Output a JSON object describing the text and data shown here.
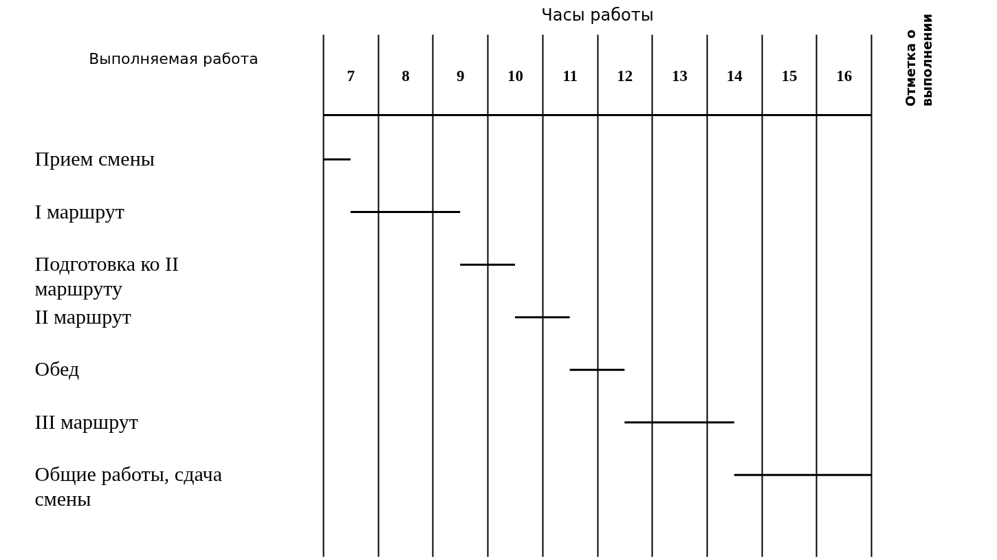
{
  "chart_data": {
    "type": "bar",
    "orientation": "horizontal",
    "xlabel": "Часы работы",
    "ylabel": "Выполняемая работа",
    "y2label": "Отметка о выполнении",
    "categories": [
      "Прием смены",
      "I маршрут",
      "Подготовка ко II маршруту",
      "II маршрут",
      "Обед",
      "III маршрут",
      "Общие работы, сдача смены"
    ],
    "base": [
      7,
      7.5,
      9.5,
      10.5,
      11.5,
      12.5,
      14.5
    ],
    "values": [
      0.5,
      2,
      1,
      1,
      1,
      2,
      2.5
    ],
    "color": "#000000",
    "xlim": [
      7,
      17
    ],
    "xticks": [
      {
        "value": 7,
        "label": null
      },
      {
        "value": 7.5,
        "label": "7"
      },
      {
        "value": 8,
        "label": null
      },
      {
        "value": 8.5,
        "label": "8"
      },
      {
        "value": 9,
        "label": null
      },
      {
        "value": 9.5,
        "label": "9"
      },
      {
        "value": 10,
        "label": null
      },
      {
        "value": 10.5,
        "label": "10"
      },
      {
        "value": 11,
        "label": null
      },
      {
        "value": 11.5,
        "label": "11"
      },
      {
        "value": 12,
        "label": null
      },
      {
        "value": 12.5,
        "label": "12"
      },
      {
        "value": 13,
        "label": null
      },
      {
        "value": 13.5,
        "label": "13"
      },
      {
        "value": 14,
        "label": null
      },
      {
        "value": 14.5,
        "label": "14"
      },
      {
        "value": 15,
        "label": null
      },
      {
        "value": 15.5,
        "label": "15"
      },
      {
        "value": 16,
        "label": null
      },
      {
        "value": 16.5,
        "label": "16"
      },
      {
        "value": 17,
        "label": null
      }
    ],
    "grid": "x"
  }
}
